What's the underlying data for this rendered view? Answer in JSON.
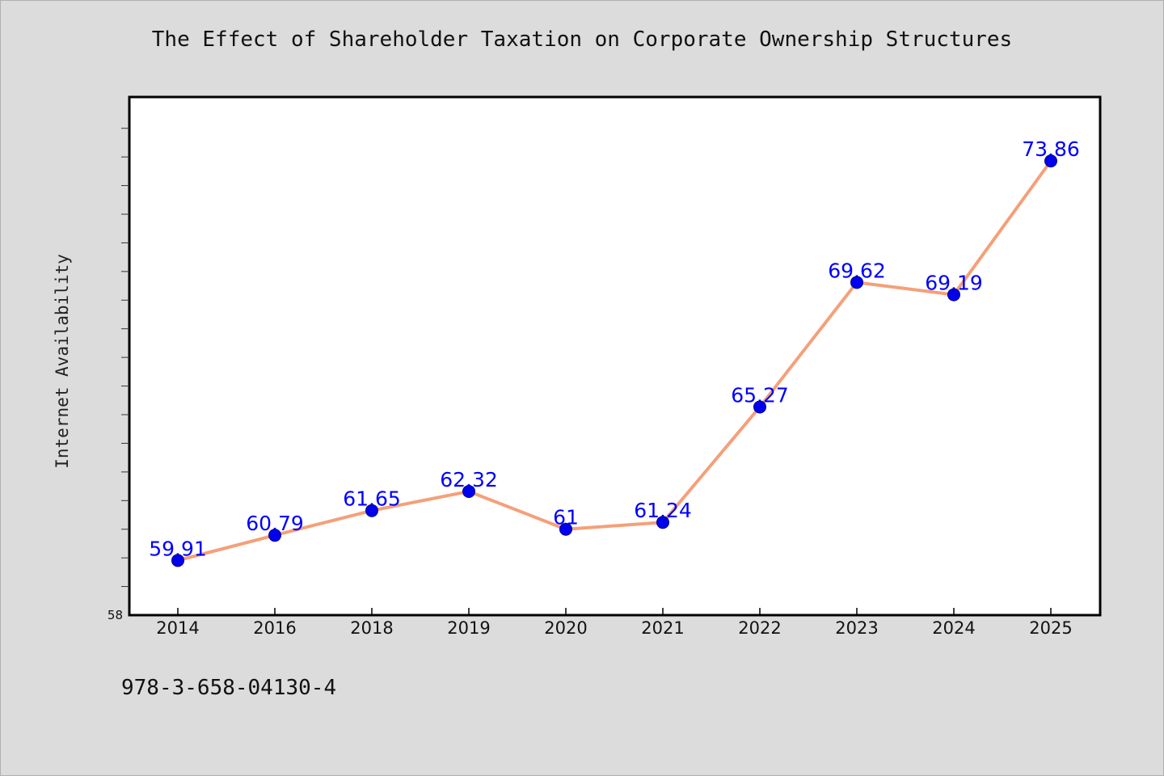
{
  "footnote": "978-3-658-04130-4",
  "chart_data": {
    "type": "line",
    "title": "The Effect of Shareholder Taxation on Corporate Ownership Structures",
    "xlabel": "",
    "ylabel": "Internet Availability",
    "categories": [
      "2014",
      "2016",
      "2018",
      "2019",
      "2020",
      "2021",
      "2022",
      "2023",
      "2024",
      "2025"
    ],
    "series": [
      {
        "values": [
          59.91,
          60.79,
          61.65,
          62.32,
          61,
          61.24,
          65.27,
          69.62,
          69.19,
          73.86
        ],
        "data_labels": [
          "59.91",
          "60.79",
          "61.65",
          "62.32",
          "61",
          "61.24",
          "65.27",
          "69.62",
          "69.19",
          "73.86"
        ]
      }
    ],
    "ylim": [
      58,
      76
    ],
    "y_tick_labels": [
      "58"
    ],
    "grid": false,
    "legend": "none",
    "colors": {
      "line": "#f4a07a",
      "marker": "#0000ee",
      "data_label": "#0000ff",
      "plot_background": "#ffffff",
      "page_background": "#dcdcdc"
    }
  }
}
